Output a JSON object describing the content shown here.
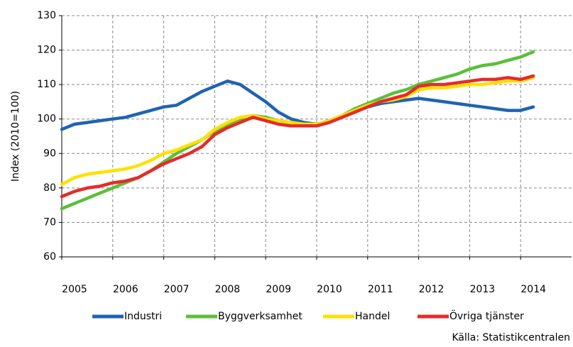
{
  "chart_data": {
    "type": "line",
    "y_label": "Index (2010=100)",
    "source": "Källa: Statistikcentralen",
    "xlim": [
      2005,
      2015
    ],
    "xticks": [
      2005,
      2006,
      2007,
      2008,
      2009,
      2010,
      2011,
      2012,
      2013,
      2014
    ],
    "ylim": [
      60,
      130
    ],
    "yticks": [
      60,
      70,
      80,
      90,
      100,
      110,
      120,
      130
    ],
    "grid": true,
    "legend": "bottom",
    "x": [
      2005,
      2005.25,
      2005.5,
      2005.75,
      2006,
      2006.25,
      2006.5,
      2006.75,
      2007,
      2007.25,
      2007.5,
      2007.75,
      2008,
      2008.25,
      2008.5,
      2008.75,
      2009,
      2009.25,
      2009.5,
      2009.75,
      2010,
      2010.25,
      2010.5,
      2010.75,
      2011,
      2011.25,
      2011.5,
      2011.75,
      2012,
      2012.25,
      2012.5,
      2012.75,
      2013,
      2013.25,
      2013.5,
      2013.75,
      2014,
      2014.25
    ],
    "series": [
      {
        "name": "Industri",
        "color": "#1f64b3",
        "values": [
          97,
          98.5,
          99,
          99.5,
          100,
          100.5,
          101.5,
          102.5,
          103.5,
          104,
          106,
          108,
          109.5,
          111,
          110,
          107.5,
          105,
          102,
          100,
          99,
          98.5,
          99.5,
          101,
          102.5,
          103.5,
          104.5,
          105,
          105.5,
          106,
          105.5,
          105,
          104.5,
          104,
          103.5,
          103,
          102.5,
          102.5,
          103.5
        ]
      },
      {
        "name": "Byggverksamhet",
        "color": "#5cbf3a",
        "values": [
          74,
          75.5,
          77,
          78.5,
          80,
          81.5,
          83,
          85,
          87.5,
          90,
          92,
          94,
          96.5,
          98.5,
          100,
          101,
          100.5,
          99.5,
          99,
          98.5,
          98.5,
          99.5,
          101,
          103,
          104.5,
          106,
          107.5,
          108.5,
          110,
          111,
          112,
          113,
          114.5,
          115.5,
          116,
          117,
          118,
          119.5
        ]
      },
      {
        "name": "Handel",
        "color": "#ffe000",
        "values": [
          81,
          83,
          84,
          84.5,
          85,
          85.5,
          86.5,
          88,
          90,
          91,
          92.5,
          94,
          97,
          99,
          100.5,
          101,
          100,
          99.5,
          99,
          98.5,
          98.5,
          99.5,
          101,
          102.5,
          104,
          105,
          105.5,
          106.5,
          108.5,
          109,
          109,
          109.5,
          110,
          110,
          110.5,
          111,
          111,
          112
        ]
      },
      {
        "name": "Övriga tjänster",
        "color": "#e52b2b",
        "values": [
          77.5,
          79,
          80,
          80.5,
          81.5,
          82,
          83,
          85,
          87,
          88.5,
          90,
          92,
          95.5,
          97.5,
          99,
          100.5,
          99.5,
          98.5,
          98,
          98,
          98,
          99,
          100.5,
          102,
          103.5,
          105,
          106,
          107,
          109.5,
          110,
          110,
          110.5,
          111,
          111.5,
          111.5,
          112,
          111.5,
          112.5
        ]
      }
    ]
  }
}
